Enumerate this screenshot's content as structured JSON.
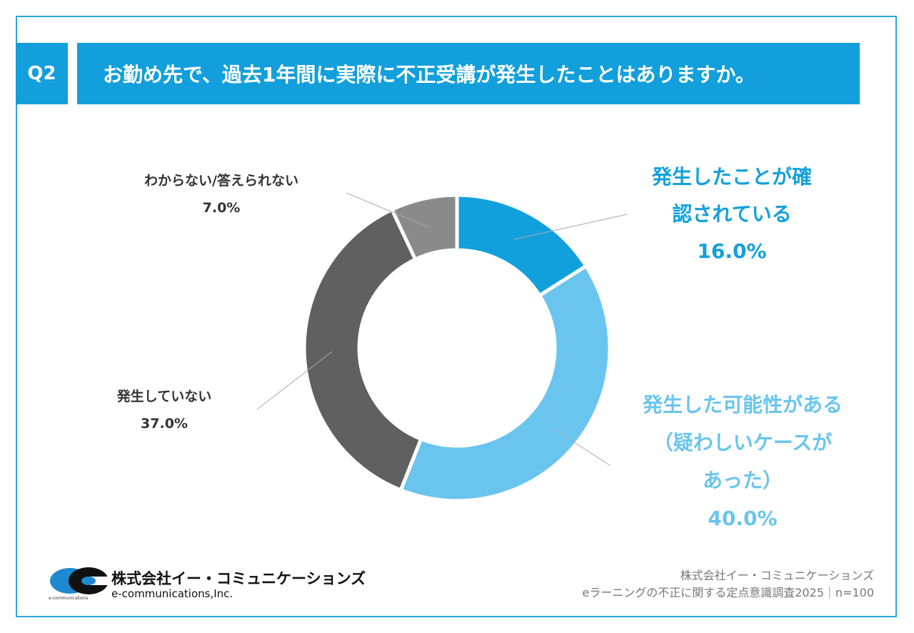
{
  "header": {
    "q_label": "Q2",
    "question": "お勤め先で、過去1年間に実際に不正受講が発生したことはありますか。"
  },
  "chart_data": {
    "type": "pie",
    "donut": true,
    "title": "お勤め先で、過去1年間に実際に不正受講が発生したことはありますか。",
    "categories": [
      "発生したことが確認されている",
      "発生した可能性がある（疑わしいケースがあった）",
      "発生していない",
      "わからない/答えられない"
    ],
    "values": [
      16.0,
      40.0,
      37.0,
      7.0
    ],
    "value_labels": [
      "16.0%",
      "40.0%",
      "37.0%",
      "7.0%"
    ],
    "colors": [
      "#12a0dc",
      "#6ac5ee",
      "#606060",
      "#8a8a8a"
    ],
    "label_lines": [
      [
        "発生したことが確",
        "認されている"
      ],
      [
        "発生した可能性がある",
        "（疑わしいケースが",
        "あった）"
      ],
      [
        "発生していない"
      ],
      [
        "わからない/答えられない"
      ]
    ]
  },
  "logo": {
    "company_jp": "株式会社イー・コミュニケーションズ",
    "company_en": "e-communications,Inc.",
    "mark_text": "e-communications"
  },
  "footer": {
    "line1": "株式会社イー・コミュニケーションズ",
    "line2": "eラーニングの不正に関する定点意識調査2025｜n=100"
  }
}
